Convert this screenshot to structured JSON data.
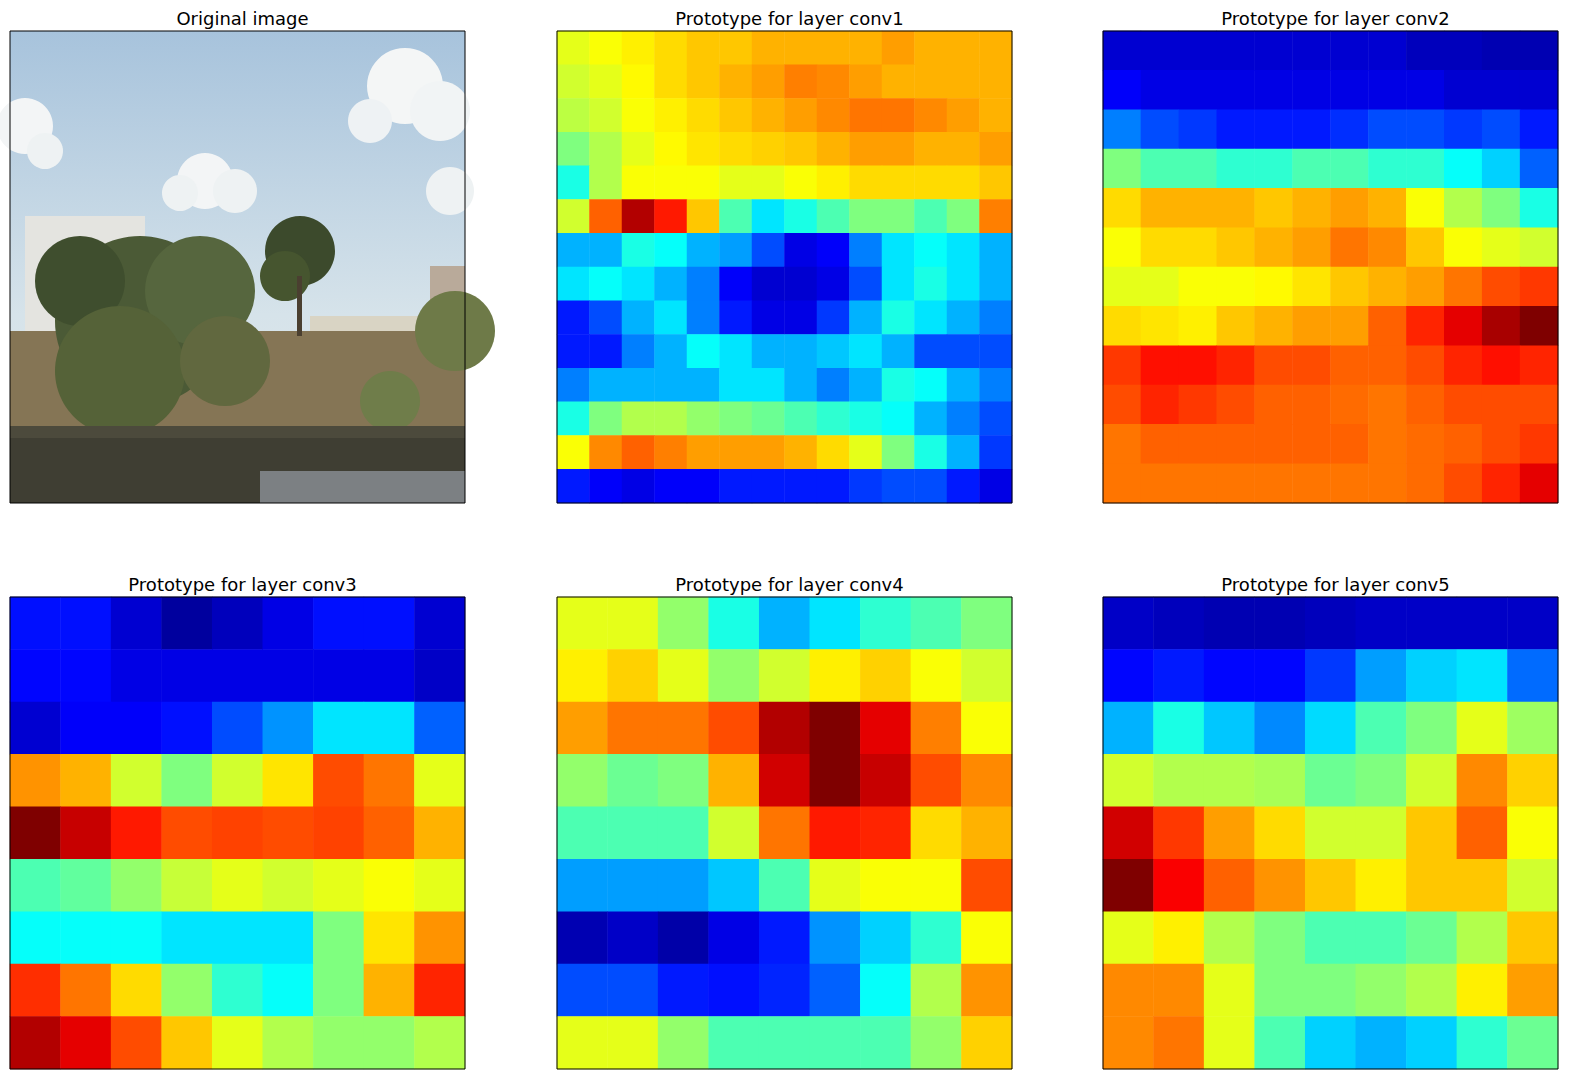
{
  "chart_data": [
    {
      "type": "image",
      "title": "Original image",
      "tick_labels": false
    },
    {
      "type": "heatmap",
      "title": "Prototype for layer conv1",
      "tick_labels": false,
      "zlim": [
        0,
        1
      ],
      "values": [
        [
          0.6,
          0.62,
          0.64,
          0.66,
          0.68,
          0.68,
          0.7,
          0.7,
          0.7,
          0.7,
          0.72,
          0.7,
          0.7,
          0.7
        ],
        [
          0.58,
          0.6,
          0.63,
          0.66,
          0.68,
          0.7,
          0.72,
          0.75,
          0.74,
          0.72,
          0.7,
          0.7,
          0.7,
          0.7
        ],
        [
          0.56,
          0.58,
          0.62,
          0.64,
          0.66,
          0.68,
          0.7,
          0.72,
          0.74,
          0.76,
          0.76,
          0.74,
          0.72,
          0.7
        ],
        [
          0.5,
          0.55,
          0.6,
          0.63,
          0.65,
          0.66,
          0.67,
          0.68,
          0.7,
          0.72,
          0.72,
          0.7,
          0.7,
          0.72
        ],
        [
          0.4,
          0.55,
          0.62,
          0.62,
          0.62,
          0.6,
          0.6,
          0.62,
          0.64,
          0.66,
          0.66,
          0.66,
          0.66,
          0.68
        ],
        [
          0.58,
          0.78,
          0.95,
          0.85,
          0.68,
          0.45,
          0.35,
          0.4,
          0.45,
          0.5,
          0.5,
          0.45,
          0.5,
          0.75
        ],
        [
          0.3,
          0.3,
          0.4,
          0.38,
          0.3,
          0.28,
          0.2,
          0.1,
          0.12,
          0.25,
          0.35,
          0.38,
          0.35,
          0.3
        ],
        [
          0.35,
          0.38,
          0.35,
          0.3,
          0.25,
          0.12,
          0.08,
          0.08,
          0.1,
          0.2,
          0.35,
          0.4,
          0.35,
          0.3
        ],
        [
          0.15,
          0.2,
          0.3,
          0.35,
          0.25,
          0.15,
          0.1,
          0.1,
          0.18,
          0.3,
          0.4,
          0.35,
          0.3,
          0.25
        ],
        [
          0.15,
          0.15,
          0.25,
          0.3,
          0.38,
          0.35,
          0.3,
          0.3,
          0.32,
          0.35,
          0.3,
          0.2,
          0.2,
          0.2
        ],
        [
          0.25,
          0.3,
          0.3,
          0.3,
          0.3,
          0.35,
          0.35,
          0.3,
          0.25,
          0.3,
          0.4,
          0.38,
          0.3,
          0.25
        ],
        [
          0.4,
          0.5,
          0.55,
          0.55,
          0.52,
          0.5,
          0.48,
          0.45,
          0.42,
          0.4,
          0.38,
          0.3,
          0.25,
          0.2
        ],
        [
          0.62,
          0.74,
          0.78,
          0.75,
          0.72,
          0.72,
          0.72,
          0.7,
          0.66,
          0.6,
          0.5,
          0.4,
          0.3,
          0.18
        ],
        [
          0.15,
          0.12,
          0.1,
          0.12,
          0.12,
          0.15,
          0.15,
          0.15,
          0.15,
          0.18,
          0.2,
          0.2,
          0.15,
          0.1
        ]
      ]
    },
    {
      "type": "heatmap",
      "title": "Prototype for layer conv2",
      "tick_labels": false,
      "zlim": [
        0,
        1
      ],
      "values": [
        [
          0.08,
          0.08,
          0.08,
          0.08,
          0.08,
          0.08,
          0.08,
          0.08,
          0.06,
          0.06,
          0.05,
          0.05
        ],
        [
          0.12,
          0.1,
          0.1,
          0.1,
          0.1,
          0.1,
          0.1,
          0.1,
          0.1,
          0.08,
          0.08,
          0.08
        ],
        [
          0.25,
          0.2,
          0.18,
          0.15,
          0.15,
          0.15,
          0.17,
          0.2,
          0.2,
          0.18,
          0.2,
          0.15
        ],
        [
          0.5,
          0.45,
          0.45,
          0.42,
          0.42,
          0.45,
          0.45,
          0.42,
          0.42,
          0.38,
          0.33,
          0.22
        ],
        [
          0.66,
          0.7,
          0.7,
          0.7,
          0.68,
          0.7,
          0.72,
          0.7,
          0.62,
          0.55,
          0.5,
          0.4
        ],
        [
          0.62,
          0.66,
          0.66,
          0.68,
          0.7,
          0.72,
          0.76,
          0.74,
          0.68,
          0.62,
          0.6,
          0.58
        ],
        [
          0.6,
          0.6,
          0.62,
          0.62,
          0.63,
          0.65,
          0.68,
          0.7,
          0.72,
          0.76,
          0.8,
          0.82
        ],
        [
          0.66,
          0.65,
          0.64,
          0.68,
          0.7,
          0.72,
          0.72,
          0.78,
          0.84,
          0.9,
          0.96,
          1.0
        ],
        [
          0.82,
          0.86,
          0.86,
          0.84,
          0.8,
          0.8,
          0.78,
          0.78,
          0.8,
          0.84,
          0.86,
          0.84
        ],
        [
          0.8,
          0.84,
          0.82,
          0.8,
          0.78,
          0.78,
          0.77,
          0.76,
          0.78,
          0.8,
          0.8,
          0.8
        ],
        [
          0.76,
          0.78,
          0.78,
          0.78,
          0.78,
          0.78,
          0.78,
          0.76,
          0.77,
          0.78,
          0.8,
          0.82
        ],
        [
          0.76,
          0.76,
          0.76,
          0.76,
          0.76,
          0.76,
          0.76,
          0.76,
          0.77,
          0.8,
          0.84,
          0.9
        ]
      ]
    },
    {
      "type": "heatmap",
      "title": "Prototype for layer conv3",
      "tick_labels": false,
      "zlim": [
        0,
        1
      ],
      "values": [
        [
          0.14,
          0.14,
          0.08,
          0.03,
          0.06,
          0.1,
          0.14,
          0.14,
          0.08
        ],
        [
          0.13,
          0.13,
          0.1,
          0.1,
          0.1,
          0.1,
          0.1,
          0.1,
          0.07
        ],
        [
          0.08,
          0.12,
          0.12,
          0.14,
          0.2,
          0.27,
          0.35,
          0.35,
          0.22
        ],
        [
          0.73,
          0.7,
          0.58,
          0.5,
          0.58,
          0.65,
          0.8,
          0.76,
          0.6
        ],
        [
          1.0,
          0.93,
          0.85,
          0.8,
          0.81,
          0.8,
          0.81,
          0.78,
          0.7
        ],
        [
          0.45,
          0.47,
          0.52,
          0.57,
          0.6,
          0.58,
          0.6,
          0.62,
          0.6
        ],
        [
          0.38,
          0.38,
          0.38,
          0.35,
          0.35,
          0.35,
          0.5,
          0.65,
          0.73
        ],
        [
          0.83,
          0.76,
          0.66,
          0.52,
          0.42,
          0.38,
          0.5,
          0.7,
          0.84
        ],
        [
          0.95,
          0.9,
          0.8,
          0.68,
          0.6,
          0.55,
          0.52,
          0.52,
          0.55
        ]
      ]
    },
    {
      "type": "heatmap",
      "title": "Prototype for layer conv4",
      "tick_labels": false,
      "zlim": [
        0,
        1
      ],
      "values": [
        [
          0.6,
          0.6,
          0.52,
          0.4,
          0.3,
          0.35,
          0.42,
          0.45,
          0.5
        ],
        [
          0.64,
          0.67,
          0.6,
          0.52,
          0.58,
          0.64,
          0.67,
          0.62,
          0.58
        ],
        [
          0.72,
          0.76,
          0.76,
          0.8,
          0.95,
          1.0,
          0.9,
          0.75,
          0.62
        ],
        [
          0.52,
          0.48,
          0.5,
          0.7,
          0.92,
          1.0,
          0.93,
          0.8,
          0.74
        ],
        [
          0.45,
          0.45,
          0.45,
          0.58,
          0.76,
          0.85,
          0.84,
          0.66,
          0.7
        ],
        [
          0.28,
          0.28,
          0.28,
          0.32,
          0.45,
          0.6,
          0.62,
          0.62,
          0.8
        ],
        [
          0.05,
          0.07,
          0.04,
          0.1,
          0.15,
          0.27,
          0.33,
          0.42,
          0.62
        ],
        [
          0.2,
          0.2,
          0.15,
          0.14,
          0.16,
          0.22,
          0.38,
          0.55,
          0.73
        ],
        [
          0.6,
          0.6,
          0.52,
          0.45,
          0.45,
          0.45,
          0.45,
          0.52,
          0.67
        ]
      ]
    },
    {
      "type": "heatmap",
      "title": "Prototype for layer conv5",
      "tick_labels": false,
      "zlim": [
        0,
        1
      ],
      "values": [
        [
          0.07,
          0.06,
          0.05,
          0.05,
          0.06,
          0.07,
          0.07,
          0.07,
          0.07
        ],
        [
          0.13,
          0.15,
          0.13,
          0.13,
          0.18,
          0.28,
          0.33,
          0.35,
          0.23
        ],
        [
          0.3,
          0.4,
          0.32,
          0.26,
          0.34,
          0.45,
          0.5,
          0.6,
          0.53
        ],
        [
          0.58,
          0.55,
          0.55,
          0.54,
          0.48,
          0.5,
          0.58,
          0.74,
          0.67
        ],
        [
          0.92,
          0.82,
          0.72,
          0.66,
          0.58,
          0.58,
          0.68,
          0.78,
          0.62
        ],
        [
          1.0,
          0.88,
          0.78,
          0.73,
          0.68,
          0.64,
          0.68,
          0.68,
          0.58
        ],
        [
          0.6,
          0.64,
          0.55,
          0.5,
          0.45,
          0.45,
          0.48,
          0.55,
          0.68
        ],
        [
          0.74,
          0.74,
          0.6,
          0.5,
          0.5,
          0.52,
          0.55,
          0.64,
          0.72
        ],
        [
          0.74,
          0.76,
          0.6,
          0.45,
          0.33,
          0.3,
          0.33,
          0.42,
          0.48
        ]
      ]
    }
  ]
}
